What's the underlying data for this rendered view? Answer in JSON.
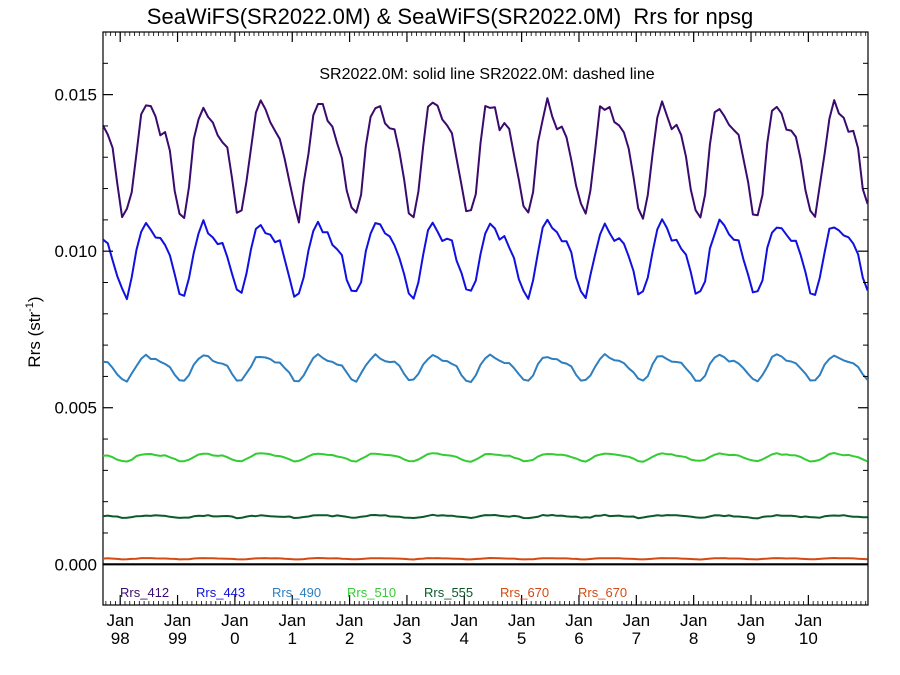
{
  "chart_data": {
    "type": "line",
    "title": "SeaWiFS(SR2022.0M) & SeaWiFS(SR2022.0M)  Rrs for npsg",
    "ylabel_main": "Rrs (str",
    "ylabel_sup": "-1",
    "ylabel_tail": ")",
    "annotation": "SR2022.0M: solid line   SR2022.0M: dashed line",
    "x_start_year": 1997.7,
    "x_end_year": 2011.04,
    "ylim": [
      -0.0013,
      0.017
    ],
    "y_ticks": [
      0.0,
      0.005,
      0.01,
      0.015
    ],
    "y_tick_labels": [
      "0.000",
      "0.005",
      "0.010",
      "0.015"
    ],
    "x_ticks": [
      {
        "month": "Jan",
        "year": "98",
        "x": 1998
      },
      {
        "month": "Jan",
        "year": "99",
        "x": 1999
      },
      {
        "month": "Jan",
        "year": "0",
        "x": 2000
      },
      {
        "month": "Jan",
        "year": "1",
        "x": 2001
      },
      {
        "month": "Jan",
        "year": "2",
        "x": 2002
      },
      {
        "month": "Jan",
        "year": "3",
        "x": 2003
      },
      {
        "month": "Jan",
        "year": "4",
        "x": 2004
      },
      {
        "month": "Jan",
        "year": "5",
        "x": 2005
      },
      {
        "month": "Jan",
        "year": "6",
        "x": 2006
      },
      {
        "month": "Jan",
        "year": "7",
        "x": 2007
      },
      {
        "month": "Jan",
        "year": "8",
        "x": 2008
      },
      {
        "month": "Jan",
        "year": "9",
        "x": 2009
      },
      {
        "month": "Jan",
        "year": "10",
        "x": 2010
      }
    ],
    "zero_line": 0.0,
    "legend_placement": "bottom-left",
    "series": [
      {
        "name": "Rrs_412",
        "color": "#3a0a6e",
        "base": 0.0132,
        "amp": 0.0019,
        "phase": 0.55,
        "noise": 0.00025,
        "anchors": [
          [
            1997.7,
            0.0141
          ],
          [
            1997.95,
            0.0112
          ],
          [
            1998.3,
            0.0131
          ],
          [
            1998.55,
            0.015
          ],
          [
            1998.9,
            0.012
          ],
          [
            1999.55,
            0.0149
          ],
          [
            1999.95,
            0.0118
          ],
          [
            2000.55,
            0.0149
          ],
          [
            2000.95,
            0.0117
          ],
          [
            2001.55,
            0.0144
          ],
          [
            2001.95,
            0.0116
          ],
          [
            2002.55,
            0.0148
          ],
          [
            2002.95,
            0.0115
          ],
          [
            2003.55,
            0.0149
          ],
          [
            2003.95,
            0.0115
          ],
          [
            2004.55,
            0.015
          ],
          [
            2004.95,
            0.0117
          ],
          [
            2005.55,
            0.015
          ],
          [
            2005.95,
            0.0114
          ],
          [
            2006.55,
            0.0149
          ],
          [
            2006.95,
            0.0113
          ],
          [
            2007.55,
            0.0151
          ],
          [
            2007.95,
            0.012
          ],
          [
            2008.55,
            0.0149
          ],
          [
            2008.95,
            0.0113
          ],
          [
            2009.55,
            0.0149
          ],
          [
            2009.95,
            0.0117
          ],
          [
            2010.55,
            0.0154
          ],
          [
            2011.04,
            0.0138
          ]
        ]
      },
      {
        "name": "Rrs_443",
        "color": "#1010e0",
        "base": 0.0099,
        "amp": 0.0012,
        "phase": 0.55,
        "noise": 0.00015,
        "anchors": [
          [
            1997.7,
            0.0104
          ],
          [
            1997.95,
            0.0087
          ],
          [
            1998.55,
            0.0109
          ],
          [
            1998.9,
            0.0093
          ],
          [
            1999.55,
            0.0107
          ],
          [
            1999.95,
            0.0092
          ],
          [
            2000.55,
            0.0105
          ],
          [
            2000.95,
            0.0091
          ],
          [
            2001.55,
            0.0104
          ],
          [
            2001.95,
            0.0089
          ],
          [
            2002.55,
            0.0104
          ],
          [
            2002.95,
            0.0088
          ],
          [
            2003.55,
            0.0106
          ],
          [
            2003.95,
            0.0089
          ],
          [
            2004.55,
            0.0109
          ],
          [
            2004.95,
            0.0089
          ],
          [
            2005.55,
            0.011
          ],
          [
            2005.95,
            0.0088
          ],
          [
            2006.55,
            0.0109
          ],
          [
            2006.95,
            0.0087
          ],
          [
            2007.55,
            0.011
          ],
          [
            2007.95,
            0.0091
          ],
          [
            2008.55,
            0.011
          ],
          [
            2008.95,
            0.0088
          ],
          [
            2009.55,
            0.0108
          ],
          [
            2009.95,
            0.009
          ],
          [
            2010.55,
            0.0112
          ],
          [
            2011.04,
            0.0102
          ]
        ]
      },
      {
        "name": "Rrs_490",
        "color": "#2e7fc0",
        "base": 0.00632,
        "amp": 0.00042,
        "phase": 0.55,
        "noise": 5e-05,
        "anchors": [
          [
            1997.7,
            0.0065
          ],
          [
            1997.95,
            0.0058
          ],
          [
            1998.55,
            0.0067
          ],
          [
            1999.55,
            0.0066
          ],
          [
            2000.55,
            0.0065
          ],
          [
            2001.55,
            0.0066
          ],
          [
            2002.55,
            0.0065
          ],
          [
            2003.55,
            0.0065
          ],
          [
            2004.55,
            0.0066
          ],
          [
            2005.55,
            0.0066
          ],
          [
            2006.55,
            0.0067
          ],
          [
            2007.55,
            0.0067
          ],
          [
            2008.55,
            0.0067
          ],
          [
            2009.55,
            0.0066
          ],
          [
            2010.55,
            0.0068
          ],
          [
            2011.04,
            0.0063
          ]
        ]
      },
      {
        "name": "Rrs_510",
        "color": "#33cc33",
        "base": 0.00343,
        "amp": 0.00013,
        "phase": 0.55,
        "noise": 2e-05,
        "anchors": [
          [
            1997.7,
            0.0036
          ],
          [
            1997.95,
            0.0033
          ],
          [
            2011.04,
            0.0034
          ]
        ]
      },
      {
        "name": "Rrs_555",
        "color": "#0b5a2a",
        "base": 0.00153,
        "amp": 4e-05,
        "phase": 0.55,
        "noise": 2e-05,
        "anchors": [
          [
            1997.7,
            0.0015
          ],
          [
            2011.04,
            0.0015
          ]
        ]
      },
      {
        "name": "Rrs_670",
        "color": "#d44a12",
        "base": 0.00018,
        "amp": 2e-05,
        "phase": 0.55,
        "noise": 5e-06,
        "anchors": [
          [
            1997.7,
            0.00018
          ],
          [
            2011.04,
            0.00018
          ]
        ]
      },
      {
        "name": "Rrs_670",
        "color": "#d44a12",
        "base": 0.00018,
        "amp": 0.0,
        "phase": 0.55,
        "noise": 0.0,
        "anchors": [],
        "legend_only": true
      }
    ]
  }
}
